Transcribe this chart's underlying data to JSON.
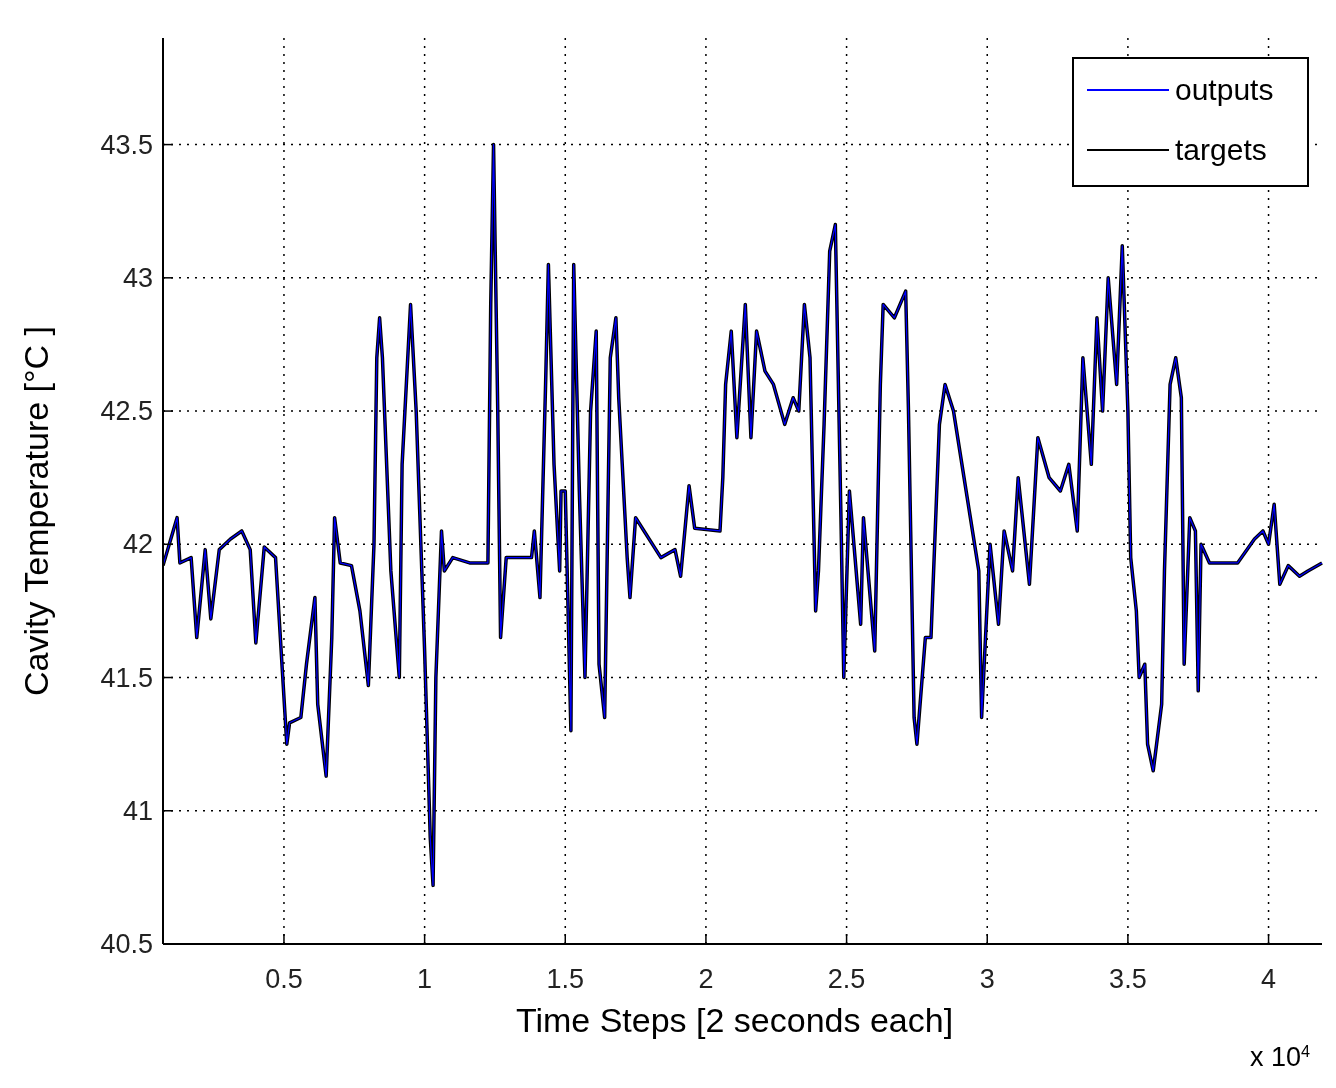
{
  "chart_data": {
    "type": "line",
    "xlabel": "Time Steps [2 seconds each]",
    "ylabel": "Cavity Temperature [°C ]",
    "x": [
      0.07,
      0.12,
      0.13,
      0.17,
      0.19,
      0.22,
      0.24,
      0.27,
      0.31,
      0.35,
      0.38,
      0.4,
      0.43,
      0.47,
      0.49,
      0.51,
      0.52,
      0.56,
      0.58,
      0.61,
      0.62,
      0.65,
      0.67,
      0.68,
      0.7,
      0.74,
      0.77,
      0.8,
      0.82,
      0.83,
      0.84,
      0.85,
      0.88,
      0.91,
      0.92,
      0.95,
      0.97,
      0.99,
      1.0,
      1.02,
      1.03,
      1.04,
      1.06,
      1.07,
      1.1,
      1.16,
      1.225,
      1.235,
      1.245,
      1.26,
      1.27,
      1.29,
      1.34,
      1.38,
      1.39,
      1.41,
      1.43,
      1.44,
      1.46,
      1.48,
      1.485,
      1.5,
      1.52,
      1.53,
      1.55,
      1.57,
      1.59,
      1.61,
      1.62,
      1.64,
      1.66,
      1.68,
      1.69,
      1.72,
      1.73,
      1.75,
      1.78,
      1.84,
      1.89,
      1.91,
      1.94,
      1.96,
      2.05,
      2.06,
      2.07,
      2.09,
      2.11,
      2.14,
      2.16,
      2.18,
      2.21,
      2.24,
      2.28,
      2.31,
      2.33,
      2.35,
      2.37,
      2.39,
      2.4,
      2.42,
      2.44,
      2.46,
      2.48,
      2.49,
      2.51,
      2.53,
      2.55,
      2.56,
      2.58,
      2.6,
      2.62,
      2.63,
      2.67,
      2.71,
      2.72,
      2.74,
      2.75,
      2.78,
      2.8,
      2.83,
      2.85,
      2.88,
      2.91,
      2.94,
      2.97,
      2.98,
      3.01,
      3.04,
      3.06,
      3.09,
      3.11,
      3.15,
      3.18,
      3.22,
      3.26,
      3.29,
      3.32,
      3.34,
      3.37,
      3.39,
      3.41,
      3.43,
      3.46,
      3.48,
      3.5,
      3.51,
      3.53,
      3.54,
      3.56,
      3.57,
      3.59,
      3.62,
      3.63,
      3.65,
      3.67,
      3.69,
      3.7,
      3.72,
      3.74,
      3.75,
      3.76,
      3.79,
      3.89,
      3.95,
      3.98,
      4.0,
      4.02,
      4.04,
      4.07,
      4.11,
      4.14,
      4.19
    ],
    "series": [
      {
        "name": "outputs",
        "color": "#0000ff",
        "values": [
          41.92,
          42.1,
          41.93,
          41.95,
          41.65,
          41.98,
          41.72,
          41.98,
          42.02,
          42.05,
          41.98,
          41.63,
          41.99,
          41.95,
          41.6,
          41.25,
          41.33,
          41.35,
          41.55,
          41.8,
          41.4,
          41.13,
          41.65,
          42.1,
          41.93,
          41.92,
          41.75,
          41.47,
          42.0,
          42.7,
          42.85,
          42.7,
          41.9,
          41.5,
          42.3,
          42.9,
          42.5,
          41.9,
          41.6,
          40.9,
          40.72,
          41.5,
          42.05,
          41.9,
          41.95,
          41.93,
          41.93,
          42.9,
          43.5,
          42.5,
          41.65,
          41.95,
          41.95,
          41.95,
          42.05,
          41.8,
          42.6,
          43.05,
          42.3,
          41.9,
          42.2,
          42.2,
          41.3,
          43.05,
          42.2,
          41.5,
          42.5,
          42.8,
          41.55,
          41.35,
          42.7,
          42.85,
          42.55,
          41.95,
          41.8,
          42.1,
          42.05,
          41.95,
          41.98,
          41.88,
          42.22,
          42.06,
          42.05,
          42.25,
          42.6,
          42.8,
          42.4,
          42.9,
          42.4,
          42.8,
          42.65,
          42.6,
          42.45,
          42.55,
          42.5,
          42.9,
          42.7,
          41.75,
          41.9,
          42.45,
          43.1,
          43.2,
          42.1,
          41.5,
          42.2,
          41.95,
          41.7,
          42.1,
          41.85,
          41.6,
          42.6,
          42.9,
          42.85,
          42.95,
          42.5,
          41.35,
          41.25,
          41.65,
          41.65,
          42.45,
          42.6,
          42.5,
          42.3,
          42.1,
          41.9,
          41.35,
          42.0,
          41.7,
          42.05,
          41.9,
          42.25,
          41.85,
          42.4,
          42.25,
          42.2,
          42.3,
          42.05,
          42.7,
          42.3,
          42.85,
          42.5,
          43.0,
          42.6,
          43.12,
          42.5,
          41.95,
          41.75,
          41.5,
          41.55,
          41.25,
          41.15,
          41.4,
          41.9,
          42.6,
          42.7,
          42.55,
          41.55,
          42.1,
          42.05,
          41.45,
          42.0,
          41.93,
          41.93,
          42.02,
          42.05,
          42.0,
          42.15,
          41.85,
          41.92,
          41.88,
          41.9,
          41.93
        ]
      },
      {
        "name": "targets",
        "color": "#000000",
        "values": [
          41.92,
          42.1,
          41.93,
          41.95,
          41.65,
          41.98,
          41.72,
          41.98,
          42.02,
          42.05,
          41.98,
          41.63,
          41.99,
          41.95,
          41.6,
          41.25,
          41.33,
          41.35,
          41.55,
          41.8,
          41.4,
          41.13,
          41.65,
          42.1,
          41.93,
          41.92,
          41.75,
          41.47,
          42.0,
          42.7,
          42.85,
          42.7,
          41.9,
          41.5,
          42.3,
          42.9,
          42.5,
          41.9,
          41.6,
          40.9,
          40.72,
          41.5,
          42.05,
          41.9,
          41.95,
          41.93,
          41.93,
          42.9,
          43.5,
          42.5,
          41.65,
          41.95,
          41.95,
          41.95,
          42.05,
          41.8,
          42.6,
          43.05,
          42.3,
          41.9,
          42.2,
          42.2,
          41.3,
          43.05,
          42.2,
          41.5,
          42.5,
          42.8,
          41.55,
          41.35,
          42.7,
          42.85,
          42.55,
          41.95,
          41.8,
          42.1,
          42.05,
          41.95,
          41.98,
          41.88,
          42.22,
          42.06,
          42.05,
          42.25,
          42.6,
          42.8,
          42.4,
          42.9,
          42.4,
          42.8,
          42.65,
          42.6,
          42.45,
          42.55,
          42.5,
          42.9,
          42.7,
          41.75,
          41.9,
          42.45,
          43.1,
          43.2,
          42.1,
          41.5,
          42.2,
          41.95,
          41.7,
          42.1,
          41.85,
          41.6,
          42.6,
          42.9,
          42.85,
          42.95,
          42.5,
          41.35,
          41.25,
          41.65,
          41.65,
          42.45,
          42.6,
          42.5,
          42.3,
          42.1,
          41.9,
          41.35,
          42.0,
          41.7,
          42.05,
          41.9,
          42.25,
          41.85,
          42.4,
          42.25,
          42.2,
          42.3,
          42.05,
          42.7,
          42.3,
          42.85,
          42.5,
          43.0,
          42.6,
          43.12,
          42.5,
          41.95,
          41.75,
          41.5,
          41.55,
          41.25,
          41.15,
          41.4,
          41.9,
          42.6,
          42.7,
          42.55,
          41.55,
          42.1,
          42.05,
          41.45,
          42.0,
          41.93,
          41.93,
          42.02,
          42.05,
          42.0,
          42.15,
          41.85,
          41.92,
          41.88,
          41.9,
          41.93
        ]
      }
    ],
    "xlim": [
      0.07,
      4.19
    ],
    "xticks": [
      0.5,
      1,
      1.5,
      2,
      2.5,
      3,
      3.5,
      4
    ],
    "ylim": [
      40.5,
      43.9
    ],
    "yticks": [
      40.5,
      41,
      41.5,
      42,
      42.5,
      43,
      43.5
    ],
    "grid": true,
    "legend": "top right",
    "line_style": "solid",
    "marker": "none",
    "annotations": [
      "x 10$^{4}$"
    ]
  }
}
